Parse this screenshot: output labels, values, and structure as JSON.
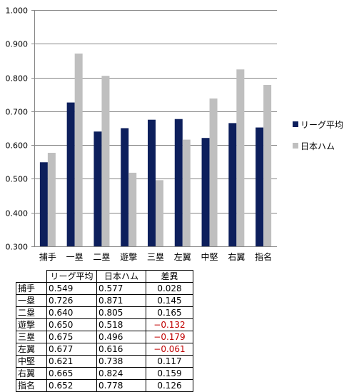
{
  "chart_data": {
    "type": "bar",
    "categories": [
      "捕手",
      "一塁",
      "二塁",
      "遊撃",
      "三塁",
      "左翼",
      "中堅",
      "右翼",
      "指名"
    ],
    "series": [
      {
        "name": "リーグ平均",
        "color": "#0d1f5c",
        "values": [
          0.549,
          0.726,
          0.64,
          0.65,
          0.675,
          0.677,
          0.621,
          0.665,
          0.652
        ]
      },
      {
        "name": "日本ハム",
        "color": "#bfbfbf",
        "values": [
          0.577,
          0.871,
          0.805,
          0.518,
          0.496,
          0.616,
          0.738,
          0.824,
          0.778
        ]
      }
    ],
    "ylim": [
      0.3,
      1.0
    ],
    "yticks": [
      "0.300",
      "0.400",
      "0.500",
      "0.600",
      "0.700",
      "0.800",
      "0.900",
      "1.000"
    ],
    "grid": true,
    "legend_position": "right",
    "xlabel": "",
    "ylabel": ""
  },
  "table": {
    "headers": [
      "リーグ平均",
      "日本ハム",
      "差異"
    ],
    "rows": [
      {
        "cat": "捕手",
        "v1": "0.549",
        "v2": "0.577",
        "v3": "0.028",
        "neg": false
      },
      {
        "cat": "一塁",
        "v1": "0.726",
        "v2": "0.871",
        "v3": "0.145",
        "neg": false
      },
      {
        "cat": "二塁",
        "v1": "0.640",
        "v2": "0.805",
        "v3": "0.165",
        "neg": false
      },
      {
        "cat": "遊撃",
        "v1": "0.650",
        "v2": "0.518",
        "v3": "−0.132",
        "neg": true
      },
      {
        "cat": "三塁",
        "v1": "0.675",
        "v2": "0.496",
        "v3": "−0.179",
        "neg": true
      },
      {
        "cat": "左翼",
        "v1": "0.677",
        "v2": "0.616",
        "v3": "−0.061",
        "neg": true
      },
      {
        "cat": "中堅",
        "v1": "0.621",
        "v2": "0.738",
        "v3": "0.117",
        "neg": false
      },
      {
        "cat": "右翼",
        "v1": "0.665",
        "v2": "0.824",
        "v3": "0.159",
        "neg": false
      },
      {
        "cat": "指名",
        "v1": "0.652",
        "v2": "0.778",
        "v3": "0.126",
        "neg": false
      }
    ]
  }
}
